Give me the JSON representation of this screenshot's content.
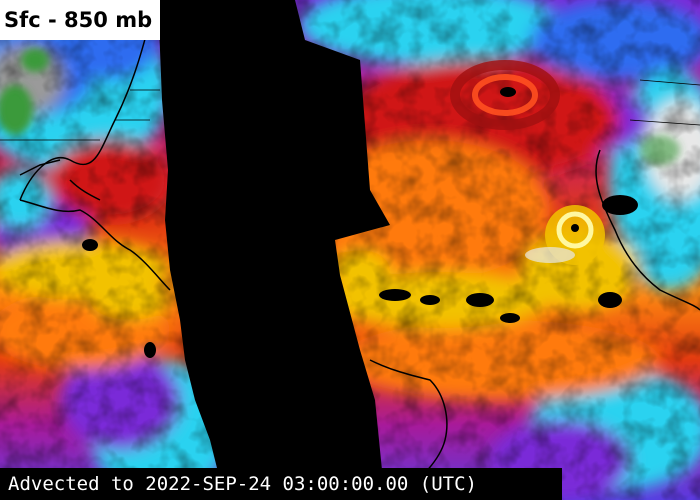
{
  "overlay": {
    "layer_title": "Sfc - 850 mb",
    "timestamp": "Advected to 2022-SEP-24 03:00:00.00 (UTC)"
  },
  "colors": {
    "no_data": "#000000",
    "moist_yellow": "#f2c200",
    "orange": "#ff7a10",
    "red": "#d01818",
    "magenta": "#c01a9a",
    "purple": "#7a2ad8",
    "blue": "#2f6cf0",
    "cyan": "#2ad2f0",
    "dry_gray": "#9a9a9a",
    "dry_white": "#e8e8e8",
    "dry_green": "#3a9a3a",
    "coastline": "#000000"
  },
  "features": {
    "storms": [
      "cyclone-north-atlantic",
      "cyclone-near-africa"
    ],
    "no_data_regions": [
      "pacific-gap"
    ]
  }
}
